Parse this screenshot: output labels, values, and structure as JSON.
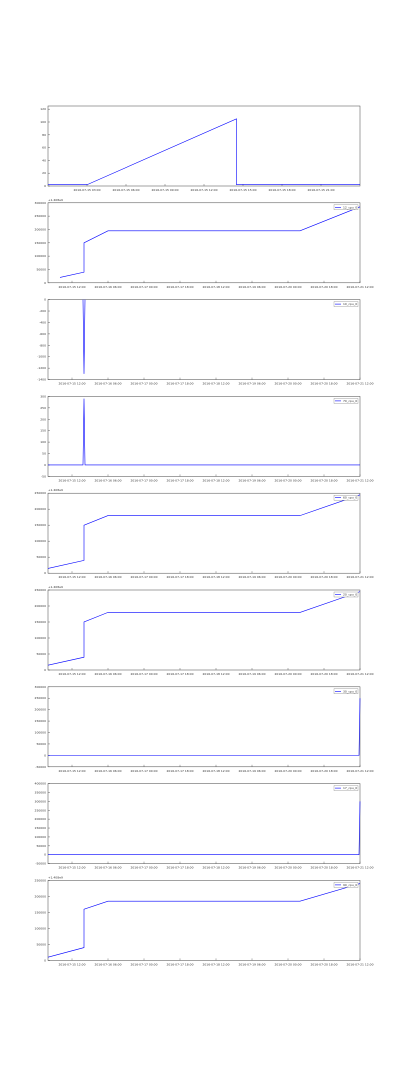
{
  "chart_data": [
    {
      "type": "line",
      "x": [
        "2016-07-15 00:00",
        "2016-07-15 03:00",
        "2016-07-15 14:30",
        "2016-07-15 14:30",
        "2016-07-16 00:00"
      ],
      "series": [
        {
          "color": "#0000ff",
          "values": [
            2,
            2,
            105,
            2,
            2
          ]
        }
      ],
      "xlim": [
        "2016-07-15 00:00",
        "2016-07-16 00:00"
      ],
      "xticks": [
        "2016-07-15 03:00",
        "2016-07-15 06:00",
        "2016-07-15 09:00",
        "2016-07-15 12:00",
        "2016-07-15 15:00",
        "2016-07-15 18:00",
        "2016-07-15 21:00"
      ],
      "ylim": [
        0,
        125
      ],
      "yticks": [
        0,
        20,
        40,
        60,
        80,
        100,
        120
      ]
    },
    {
      "type": "line",
      "x": [
        "2016-07-15 06:00",
        "2016-07-15 18:00",
        "2016-07-15 18:00",
        "2016-07-16 06:00",
        "2016-07-20 06:00",
        "2016-07-21 12:00"
      ],
      "series": [
        {
          "name": "12_cpu_0",
          "color": "#0000ff",
          "values": [
            20000,
            40000,
            150000,
            195000,
            195000,
            285000
          ]
        }
      ],
      "offset_label": "+1.408e9",
      "xlim": [
        "2016-07-15 00:00",
        "2016-07-21 12:00"
      ],
      "xticks": [
        "2016-07-15 12:00",
        "2016-07-16 06:00",
        "2016-07-17 00:00",
        "2016-07-17 18:00",
        "2016-07-18 12:00",
        "2016-07-19 06:00",
        "2016-07-20 00:00",
        "2016-07-20 18:00",
        "2016-07-21 12:00"
      ],
      "ylim": [
        0,
        300000
      ],
      "yticks": [
        0,
        50000,
        100000,
        150000,
        200000,
        250000,
        300000
      ],
      "legend": "upper right"
    },
    {
      "type": "line",
      "x": [
        "2016-07-15 17:30",
        "2016-07-15 18:00",
        "2016-07-15 18:30"
      ],
      "series": [
        {
          "name": "10_cpu_0",
          "color": "#0000ff",
          "values": [
            0,
            -1300,
            0
          ]
        }
      ],
      "xlim": [
        "2016-07-15 00:00",
        "2016-07-21 12:00"
      ],
      "xticks": [
        "2016-07-15 12:00",
        "2016-07-16 06:00",
        "2016-07-17 00:00",
        "2016-07-17 18:00",
        "2016-07-18 12:00",
        "2016-07-19 06:00",
        "2016-07-20 00:00",
        "2016-07-20 18:00",
        "2016-07-21 12:00"
      ],
      "ylim": [
        -1400,
        0
      ],
      "yticks": [
        -1400,
        -1200,
        -1000,
        -800,
        -600,
        -400,
        -200,
        0
      ],
      "legend": "upper right"
    },
    {
      "type": "line",
      "x": [
        "2016-07-15 00:00",
        "2016-07-15 17:30",
        "2016-07-15 18:00",
        "2016-07-15 18:30",
        "2016-07-21 12:00"
      ],
      "series": [
        {
          "name": "70_cpu_0",
          "color": "#0000ff",
          "values": [
            0,
            0,
            290,
            0,
            0
          ]
        }
      ],
      "xlim": [
        "2016-07-15 00:00",
        "2016-07-21 12:00"
      ],
      "xticks": [
        "2016-07-15 12:00",
        "2016-07-16 06:00",
        "2016-07-17 00:00",
        "2016-07-17 18:00",
        "2016-07-18 12:00",
        "2016-07-19 06:00",
        "2016-07-20 00:00",
        "2016-07-20 18:00",
        "2016-07-21 12:00"
      ],
      "ylim": [
        -50,
        300
      ],
      "yticks": [
        -50,
        0,
        50,
        100,
        150,
        200,
        250,
        300
      ],
      "legend": "upper right"
    },
    {
      "type": "line",
      "x": [
        "2016-07-15 00:00",
        "2016-07-15 18:00",
        "2016-07-15 18:00",
        "2016-07-16 06:00",
        "2016-07-20 06:00",
        "2016-07-21 12:00"
      ],
      "series": [
        {
          "name": "60_cpu_0",
          "color": "#0000ff",
          "values": [
            15000,
            40000,
            150000,
            180000,
            180000,
            245000
          ]
        }
      ],
      "offset_label": "+1.408e9",
      "xlim": [
        "2016-07-15 00:00",
        "2016-07-21 12:00"
      ],
      "xticks": [
        "2016-07-15 12:00",
        "2016-07-16 06:00",
        "2016-07-17 00:00",
        "2016-07-17 18:00",
        "2016-07-18 12:00",
        "2016-07-19 06:00",
        "2016-07-20 00:00",
        "2016-07-20 18:00",
        "2016-07-21 12:00"
      ],
      "ylim": [
        0,
        250000
      ],
      "yticks": [
        0,
        50000,
        100000,
        150000,
        200000,
        250000
      ],
      "legend": "upper right"
    },
    {
      "type": "line",
      "x": [
        "2016-07-15 00:00",
        "2016-07-15 18:00",
        "2016-07-15 18:00",
        "2016-07-16 06:00",
        "2016-07-20 06:00",
        "2016-07-21 12:00"
      ],
      "series": [
        {
          "name": "20_cpu_0",
          "color": "#0000ff",
          "values": [
            15000,
            40000,
            150000,
            180000,
            180000,
            245000
          ]
        }
      ],
      "offset_label": "+1.408e9",
      "xlim": [
        "2016-07-15 00:00",
        "2016-07-21 12:00"
      ],
      "xticks": [
        "2016-07-15 12:00",
        "2016-07-16 06:00",
        "2016-07-17 00:00",
        "2016-07-17 18:00",
        "2016-07-18 12:00",
        "2016-07-19 06:00",
        "2016-07-20 00:00",
        "2016-07-20 18:00",
        "2016-07-21 12:00"
      ],
      "ylim": [
        0,
        250000
      ],
      "yticks": [
        0,
        50000,
        100000,
        150000,
        200000,
        250000
      ],
      "legend": "upper right"
    },
    {
      "type": "line",
      "x": [
        "2016-07-15 00:00",
        "2016-07-21 11:30",
        "2016-07-21 12:00"
      ],
      "series": [
        {
          "name": "30_cpu_0",
          "color": "#0000ff",
          "values": [
            0,
            0,
            250000
          ]
        }
      ],
      "xlim": [
        "2016-07-15 00:00",
        "2016-07-21 12:00"
      ],
      "xticks": [
        "2016-07-15 12:00",
        "2016-07-16 06:00",
        "2016-07-17 00:00",
        "2016-07-17 18:00",
        "2016-07-18 12:00",
        "2016-07-19 06:00",
        "2016-07-20 00:00",
        "2016-07-20 18:00",
        "2016-07-21 12:00"
      ],
      "ylim": [
        -50000,
        300000
      ],
      "yticks": [
        -50000,
        0,
        50000,
        100000,
        150000,
        200000,
        250000,
        300000
      ],
      "legend": "upper right"
    },
    {
      "type": "line",
      "x": [
        "2016-07-15 00:00",
        "2016-07-21 11:30",
        "2016-07-21 12:00"
      ],
      "series": [
        {
          "name": "17_cpu_0",
          "color": "#0000ff",
          "values": [
            0,
            0,
            300000
          ]
        }
      ],
      "xlim": [
        "2016-07-15 00:00",
        "2016-07-21 12:00"
      ],
      "xticks": [
        "2016-07-15 12:00",
        "2016-07-16 06:00",
        "2016-07-17 00:00",
        "2016-07-17 18:00",
        "2016-07-18 12:00",
        "2016-07-19 06:00",
        "2016-07-20 00:00",
        "2016-07-20 18:00",
        "2016-07-21 12:00"
      ],
      "ylim": [
        -50000,
        400000
      ],
      "yticks": [
        -50000,
        0,
        50000,
        100000,
        150000,
        200000,
        250000,
        300000,
        350000,
        400000
      ],
      "legend": "upper right"
    },
    {
      "type": "line",
      "x": [
        "2016-07-15 00:00",
        "2016-07-15 18:00",
        "2016-07-15 18:00",
        "2016-07-16 06:00",
        "2016-07-20 06:00",
        "2016-07-21 12:00"
      ],
      "series": [
        {
          "name": "90_cpu_0",
          "color": "#0000ff",
          "values": [
            10000,
            40000,
            160000,
            185000,
            185000,
            240000
          ]
        }
      ],
      "offset_label": "+1.408e9",
      "xlim": [
        "2016-07-15 00:00",
        "2016-07-21 12:00"
      ],
      "xticks": [
        "2016-07-15 12:00",
        "2016-07-16 06:00",
        "2016-07-17 00:00",
        "2016-07-17 18:00",
        "2016-07-18 12:00",
        "2016-07-19 06:00",
        "2016-07-20 00:00",
        "2016-07-20 18:00",
        "2016-07-21 12:00"
      ],
      "ylim": [
        0,
        250000
      ],
      "yticks": [
        0,
        50000,
        100000,
        150000,
        200000,
        250000
      ],
      "legend": "upper right"
    }
  ]
}
